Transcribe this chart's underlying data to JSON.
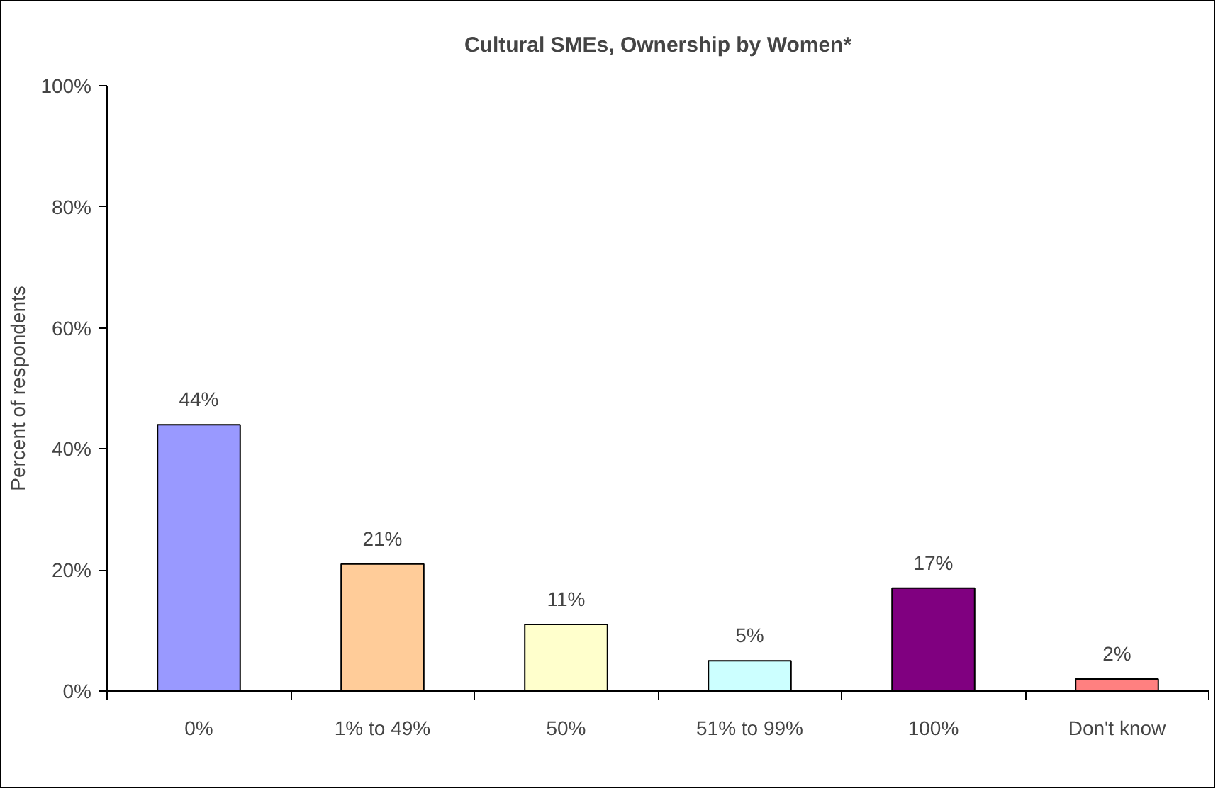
{
  "chart_data": {
    "type": "bar",
    "title": "Cultural SMEs, Ownership by Women*",
    "ylabel": "Percent of respondents",
    "categories": [
      "0%",
      "1% to 49%",
      "50%",
      "51% to 99%",
      "100%",
      "Don't know"
    ],
    "values": [
      44,
      21,
      11,
      5,
      17,
      2
    ],
    "colors": [
      "#9999ff",
      "#ffcc99",
      "#ffffcc",
      "#ccffff",
      "#800080",
      "#ff8080"
    ],
    "value_labels": [
      "44%",
      "21%",
      "11%",
      "5%",
      "17%",
      "2%"
    ],
    "ylim": [
      0,
      100
    ],
    "yticks": [
      {
        "value": 0,
        "label": "0%"
      },
      {
        "value": 20,
        "label": "20%"
      },
      {
        "value": 40,
        "label": "40%"
      },
      {
        "value": 60,
        "label": "60%"
      },
      {
        "value": 80,
        "label": "80%"
      },
      {
        "value": 100,
        "label": "100%"
      }
    ],
    "grid": false
  }
}
